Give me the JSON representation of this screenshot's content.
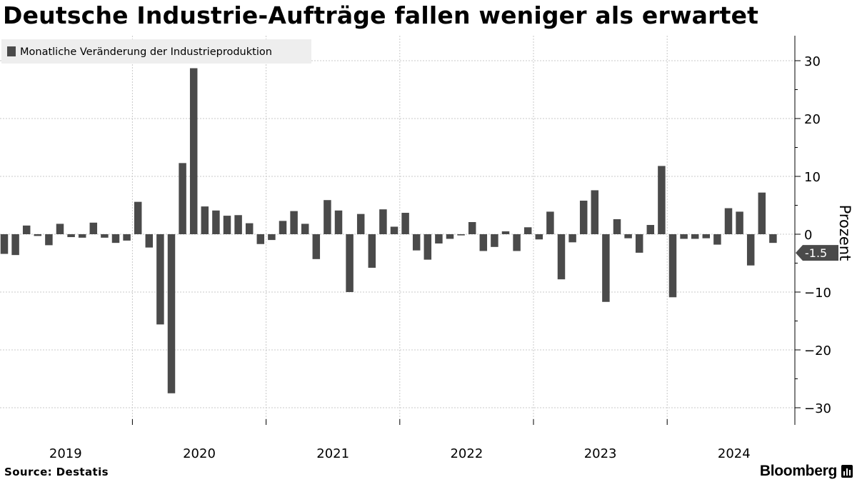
{
  "title": "Deutsche Industrie-Aufträge fallen weniger als erwartet",
  "source": "Source:  Destatis",
  "brand": "Bloomberg",
  "colors": {
    "bar": "#4a4a4a",
    "grid": "#c8c8c8",
    "legend_bg": "#eeeeee",
    "last_value_tag": "#4a4a4a"
  },
  "chart_data": {
    "type": "bar",
    "legend": [
      "Monatliche Veränderung der Industrieproduktion"
    ],
    "ylabel": "Prozent",
    "ylim": [
      -33,
      34
    ],
    "yticks": [
      30,
      20,
      10,
      0,
      -10,
      -20,
      -30
    ],
    "grid": true,
    "legend_position": "top-left",
    "axis_side": "right",
    "x_start": "2019-01",
    "year_labels": [
      "2019",
      "2020",
      "2021",
      "2022",
      "2023",
      "2024"
    ],
    "last_value_label": "-1.5",
    "series": [
      {
        "name": "Monatliche Veränderung der Industrieproduktion",
        "values": [
          -3.4,
          -3.6,
          1.5,
          -0.3,
          -1.9,
          1.8,
          -0.5,
          -0.6,
          2.0,
          -0.6,
          -1.5,
          -1.1,
          5.6,
          -2.3,
          -15.6,
          -27.5,
          12.3,
          28.7,
          4.8,
          4.1,
          3.2,
          3.3,
          1.9,
          -1.7,
          -1.0,
          2.3,
          4.0,
          1.8,
          -4.3,
          5.9,
          4.1,
          -10.0,
          3.5,
          -5.8,
          4.3,
          1.3,
          3.7,
          -2.8,
          -4.4,
          -1.6,
          -0.8,
          -0.2,
          2.1,
          -2.9,
          -2.2,
          0.5,
          -2.9,
          1.2,
          -0.9,
          3.9,
          -7.8,
          -1.4,
          5.8,
          7.6,
          -11.7,
          2.6,
          -0.7,
          -3.2,
          1.6,
          11.8,
          -10.9,
          -0.8,
          -0.8,
          -0.7,
          -1.8,
          4.5,
          3.9,
          -5.4,
          7.2,
          -1.5
        ]
      }
    ]
  }
}
